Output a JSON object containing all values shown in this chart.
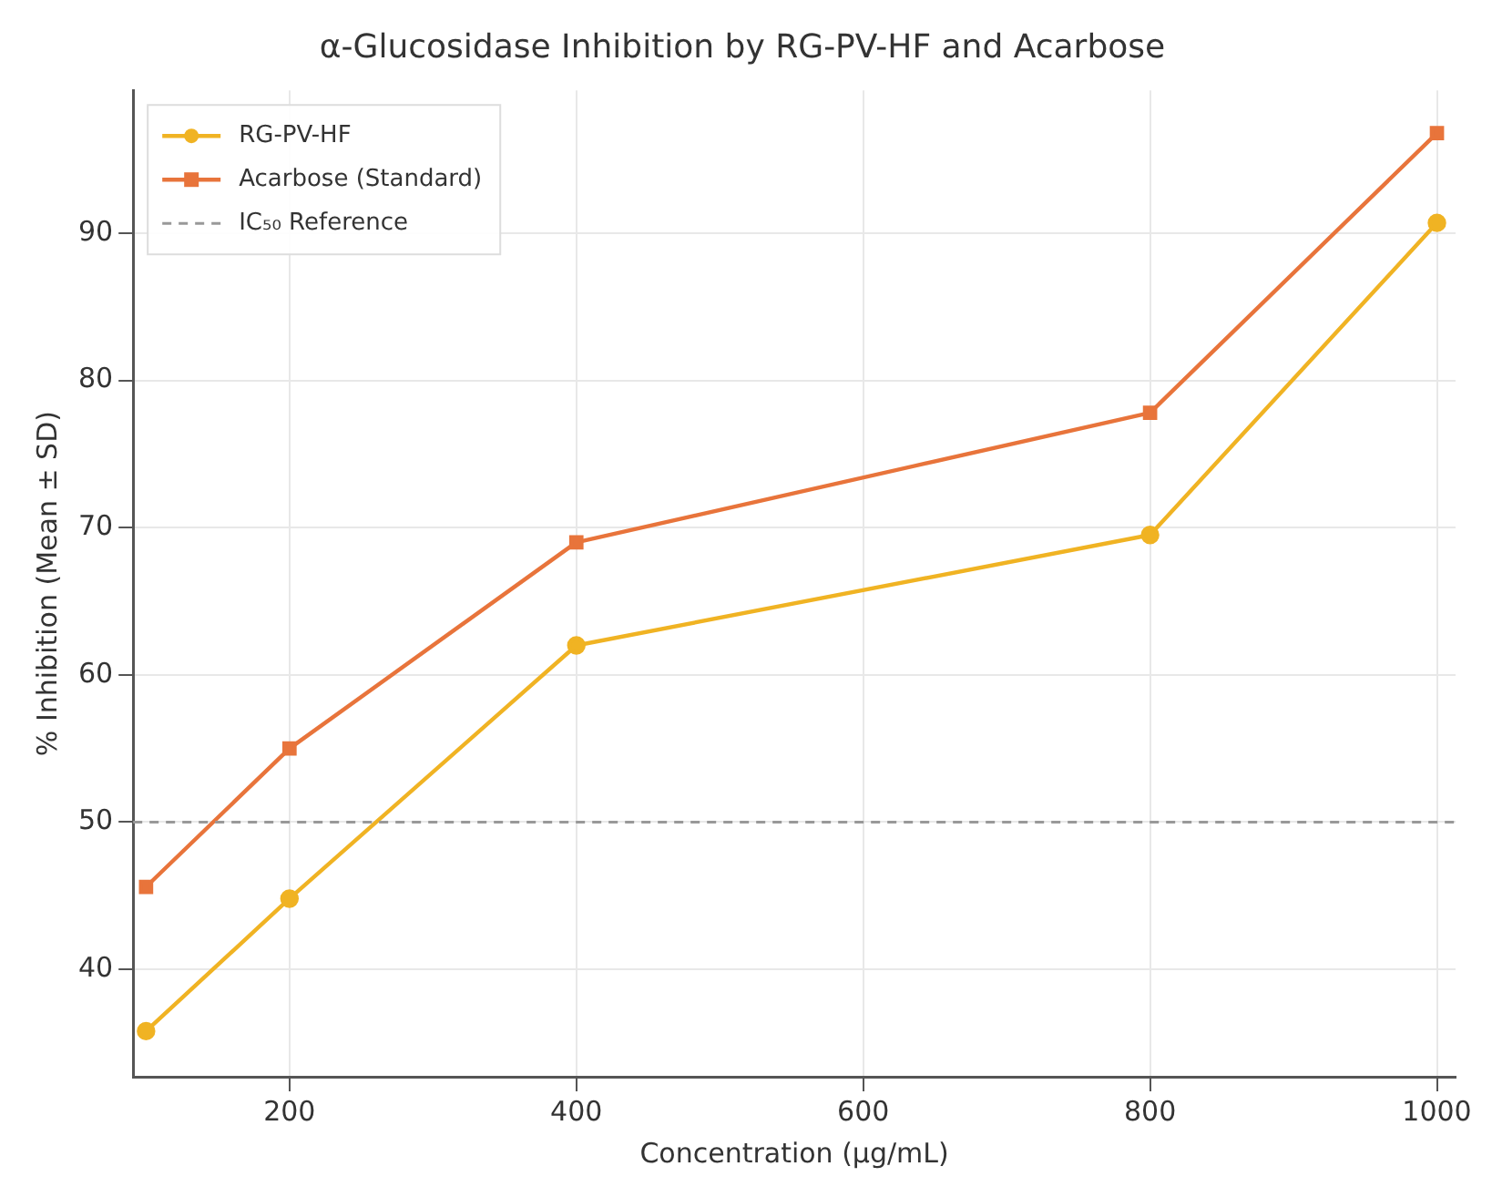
{
  "chart_data": {
    "type": "line",
    "title": "α-Glucosidase Inhibition by RG-PV-HF and Acarbose",
    "xlabel": "Concentration (µg/mL)",
    "ylabel": "% Inhibition (Mean ± SD)",
    "x": [
      100,
      200,
      400,
      800,
      1000
    ],
    "series": [
      {
        "name": "RG-PV-HF",
        "color": "#f0b323",
        "marker": "circle",
        "values": [
          35.8,
          44.8,
          62,
          69.5,
          90.7
        ]
      },
      {
        "name": "Acarbose (Standard)",
        "color": "#e8743b",
        "marker": "square",
        "values": [
          45.6,
          55,
          69,
          77.8,
          96.8
        ]
      }
    ],
    "ref_lines": [
      {
        "axis": "y",
        "value": 50,
        "label": "IC₅₀ Reference",
        "color": "#999999",
        "line_style": "dashed"
      }
    ],
    "xlim": [
      91,
      1013
    ],
    "xticks": [
      200,
      400,
      600,
      800,
      1000
    ],
    "ylim": [
      32.7,
      99.7
    ],
    "yticks": [
      40,
      50,
      60,
      70,
      80,
      90
    ],
    "grid": true,
    "legend": "top left",
    "line_style": "solid"
  }
}
